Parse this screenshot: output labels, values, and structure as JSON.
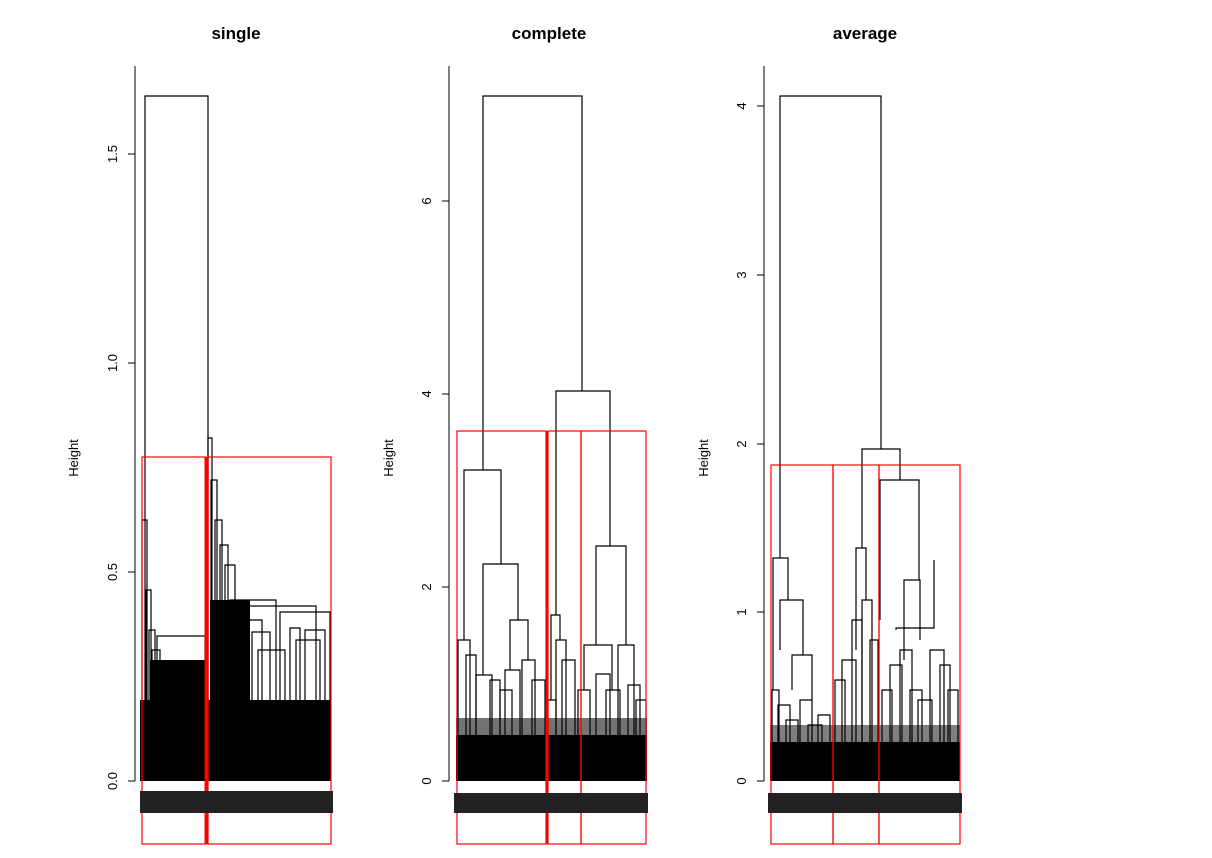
{
  "chart_data": [
    {
      "type": "dendrogram",
      "title": "single",
      "ylabel": "Height",
      "xlabel": "",
      "ylim": [
        0,
        1.7
      ],
      "yticks": [
        0.0,
        0.5,
        1.0,
        1.5
      ],
      "ytick_labels": [
        "0.0",
        "0.5",
        "1.0",
        "1.5"
      ],
      "top_merge_height": 1.64,
      "cut_height": 0.78,
      "clusters": 2,
      "colors": {
        "tree": "#000000",
        "cluster_box": "#ff0000"
      }
    },
    {
      "type": "dendrogram",
      "title": "complete",
      "ylabel": "Height",
      "xlabel": "",
      "ylim": [
        0,
        7.2
      ],
      "yticks": [
        0,
        2,
        4,
        6
      ],
      "ytick_labels": [
        "0",
        "2",
        "4",
        "6"
      ],
      "top_merge_height": 7.05,
      "cut_height": 3.6,
      "clusters": 3,
      "colors": {
        "tree": "#000000",
        "cluster_box": "#ff0000"
      }
    },
    {
      "type": "dendrogram",
      "title": "average",
      "ylabel": "Height",
      "xlabel": "",
      "ylim": [
        0,
        4.1
      ],
      "yticks": [
        0,
        1,
        2,
        3,
        4
      ],
      "ytick_labels": [
        "0",
        "1",
        "2",
        "3",
        "4"
      ],
      "top_merge_height": 4.05,
      "cut_height": 1.88,
      "clusters": 3,
      "colors": {
        "tree": "#000000",
        "cluster_box": "#ff0000"
      }
    }
  ]
}
